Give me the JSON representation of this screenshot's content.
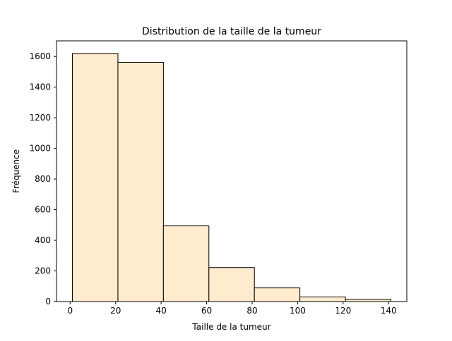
{
  "chart_data": {
    "type": "bar",
    "title": "Distribution de la taille de la tumeur",
    "xlabel": "Taille de la tumeur",
    "ylabel": "Fréquence",
    "bins": [
      {
        "start": 1,
        "end": 21,
        "value": 1620
      },
      {
        "start": 21,
        "end": 41,
        "value": 1562
      },
      {
        "start": 41,
        "end": 61,
        "value": 494
      },
      {
        "start": 61,
        "end": 81,
        "value": 222
      },
      {
        "start": 81,
        "end": 101,
        "value": 89
      },
      {
        "start": 101,
        "end": 121,
        "value": 30
      },
      {
        "start": 121,
        "end": 141,
        "value": 14
      }
    ],
    "xticks": [
      0,
      20,
      40,
      60,
      80,
      100,
      120,
      140
    ],
    "yticks": [
      0,
      200,
      400,
      600,
      800,
      1000,
      1200,
      1400,
      1600
    ],
    "xlim": [
      -6,
      148
    ],
    "ylim": [
      0,
      1702
    ],
    "grid": false,
    "bar_color": "#ffebcd",
    "edge_color": "#000000"
  }
}
